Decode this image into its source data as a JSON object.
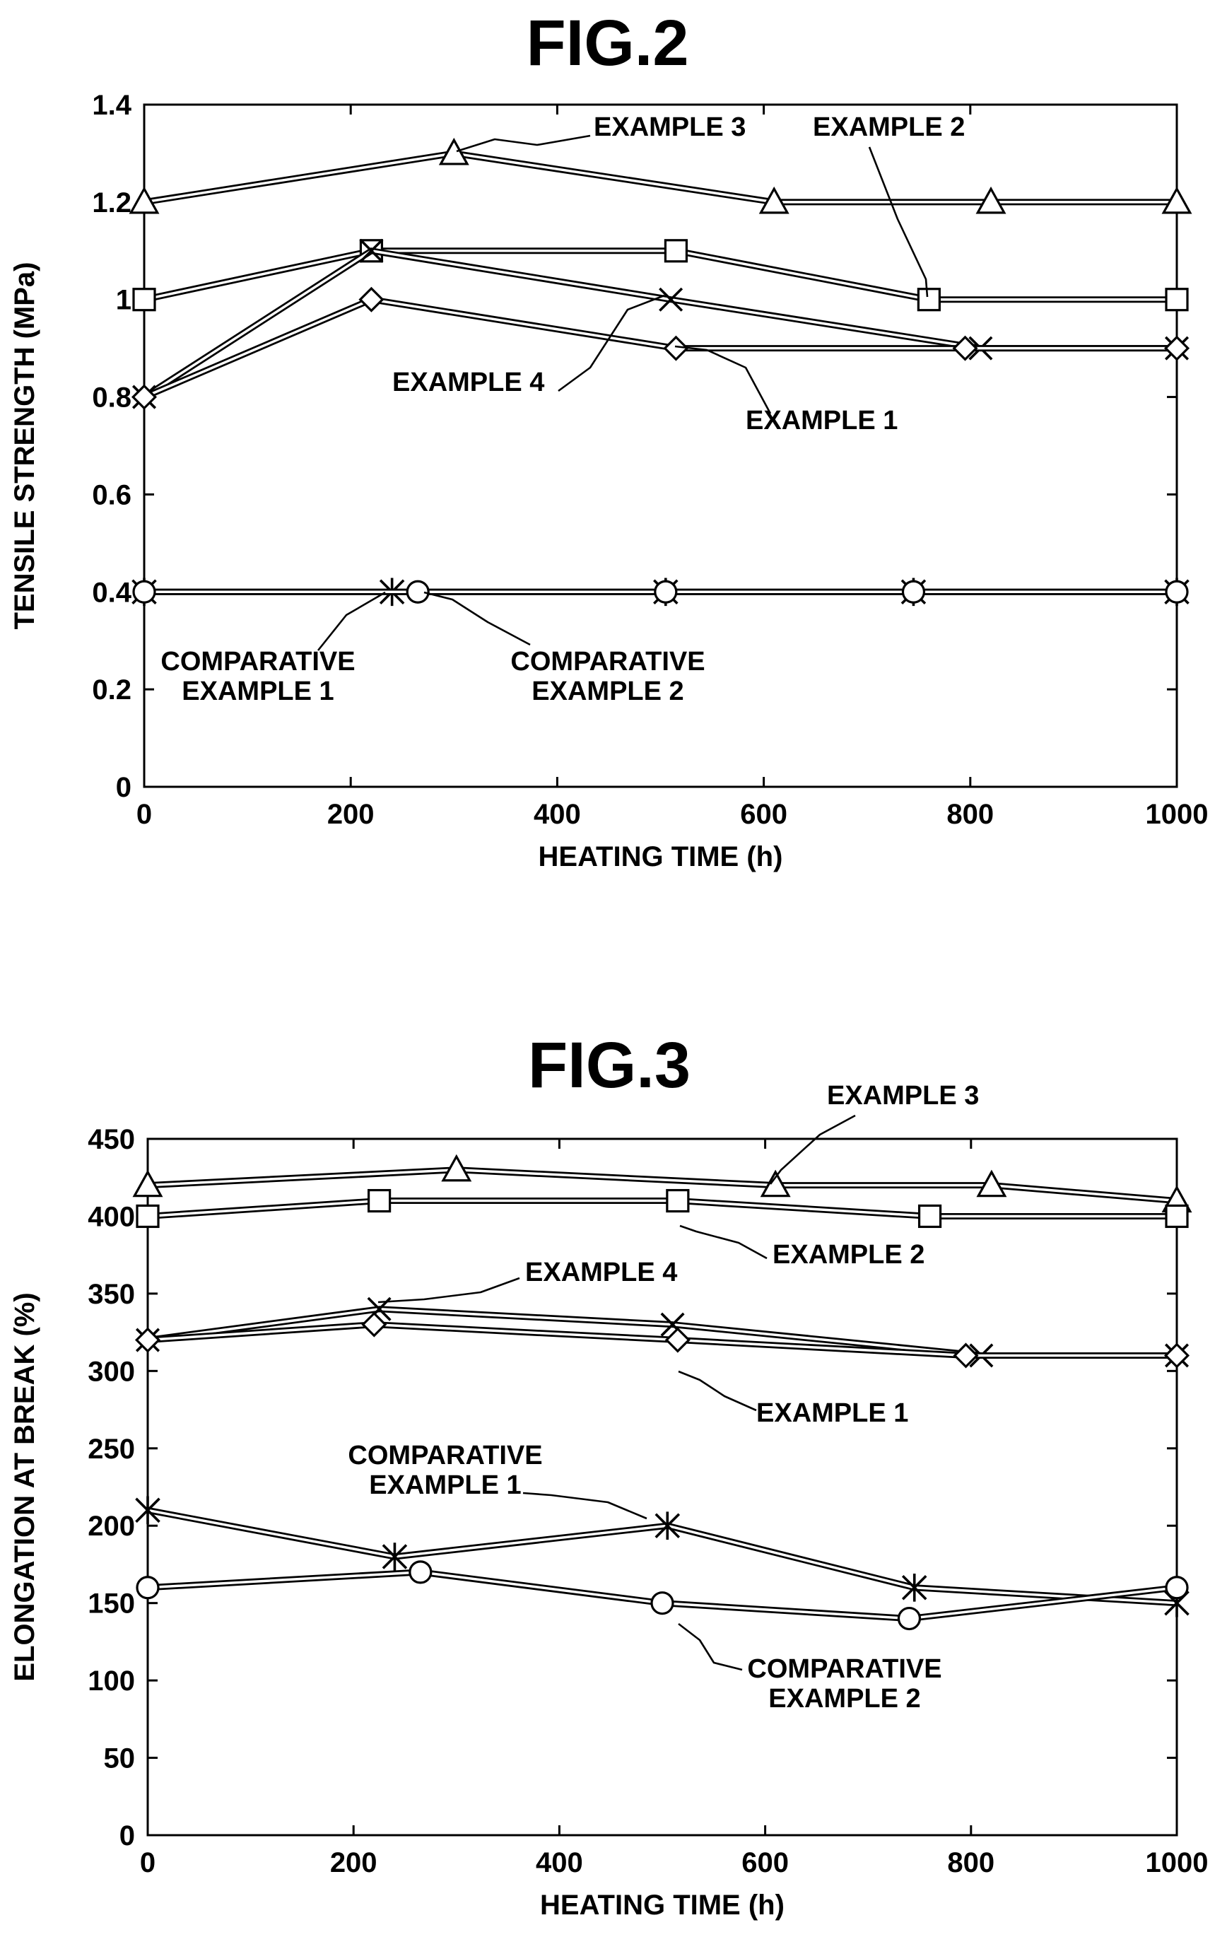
{
  "chart_data": [
    {
      "type": "line",
      "title": "FIG.2",
      "xlabel": "HEATING TIME (h)",
      "ylabel": "TENSILE STRENGTH (MPa)",
      "xlim": [
        0,
        1000
      ],
      "ylim": [
        0,
        1.4
      ],
      "xticks": [
        "0",
        "200",
        "400",
        "600",
        "800",
        "1000"
      ],
      "yticks": [
        "0",
        "0.2",
        "0.4",
        "0.6",
        "0.8",
        "1",
        "1.2",
        "1.4"
      ],
      "grid": false,
      "series": [
        {
          "name": "EXAMPLE 3",
          "marker": "triangle",
          "x": [
            0,
            300,
            610,
            820,
            1000
          ],
          "y": [
            1.2,
            1.3,
            1.2,
            1.2,
            1.2
          ]
        },
        {
          "name": "EXAMPLE 2",
          "marker": "square",
          "x": [
            0,
            220,
            515,
            760,
            1000
          ],
          "y": [
            1.0,
            1.1,
            1.1,
            1.0,
            1.0
          ]
        },
        {
          "name": "EXAMPLE 4",
          "marker": "x",
          "x": [
            0,
            220,
            510,
            810,
            1000
          ],
          "y": [
            0.8,
            1.1,
            1.0,
            0.9,
            0.9
          ]
        },
        {
          "name": "EXAMPLE 1",
          "marker": "diamond",
          "x": [
            0,
            220,
            515,
            795,
            1000
          ],
          "y": [
            0.8,
            1.0,
            0.9,
            0.9,
            0.9
          ]
        },
        {
          "name": "COMPARATIVE EXAMPLE 1",
          "marker": "asterisk",
          "x": [
            0,
            240,
            505,
            745,
            1000
          ],
          "y": [
            0.4,
            0.4,
            0.4,
            0.4,
            0.4
          ]
        },
        {
          "name": "COMPARATIVE EXAMPLE 2",
          "marker": "circle",
          "x": [
            0,
            265,
            505,
            745,
            1000
          ],
          "y": [
            0.4,
            0.4,
            0.4,
            0.4,
            0.4
          ]
        }
      ],
      "annotations": [
        {
          "series": "EXAMPLE 3",
          "lines": [
            "EXAMPLE 3"
          ]
        },
        {
          "series": "EXAMPLE 2",
          "lines": [
            "EXAMPLE 2"
          ]
        },
        {
          "series": "EXAMPLE 4",
          "lines": [
            "EXAMPLE 4"
          ]
        },
        {
          "series": "EXAMPLE 1",
          "lines": [
            "EXAMPLE 1"
          ]
        },
        {
          "series": "COMPARATIVE EXAMPLE 1",
          "lines": [
            "COMPARATIVE",
            "EXAMPLE 1"
          ]
        },
        {
          "series": "COMPARATIVE EXAMPLE 2",
          "lines": [
            "COMPARATIVE",
            "EXAMPLE 2"
          ]
        }
      ]
    },
    {
      "type": "line",
      "title": "FIG.3",
      "xlabel": "HEATING TIME (h)",
      "ylabel": "ELONGATION AT BREAK (%)",
      "xlim": [
        0,
        1000
      ],
      "ylim": [
        0,
        450
      ],
      "xticks": [
        "0",
        "200",
        "400",
        "600",
        "800",
        "1000"
      ],
      "yticks": [
        "0",
        "50",
        "100",
        "150",
        "200",
        "250",
        "300",
        "350",
        "400",
        "450"
      ],
      "grid": false,
      "series": [
        {
          "name": "EXAMPLE 3",
          "marker": "triangle",
          "x": [
            0,
            300,
            610,
            820,
            1000
          ],
          "y": [
            420,
            430,
            420,
            420,
            410
          ]
        },
        {
          "name": "EXAMPLE 2",
          "marker": "square",
          "x": [
            0,
            225,
            515,
            760,
            1000
          ],
          "y": [
            400,
            410,
            410,
            400,
            400
          ]
        },
        {
          "name": "EXAMPLE 4",
          "marker": "x",
          "x": [
            0,
            225,
            510,
            810,
            1000
          ],
          "y": [
            320,
            340,
            330,
            310,
            310
          ]
        },
        {
          "name": "EXAMPLE 1",
          "marker": "diamond",
          "x": [
            0,
            220,
            515,
            795,
            1000
          ],
          "y": [
            320,
            330,
            320,
            310,
            310
          ]
        },
        {
          "name": "COMPARATIVE EXAMPLE 1",
          "marker": "asterisk",
          "x": [
            0,
            240,
            505,
            745,
            1000
          ],
          "y": [
            210,
            180,
            200,
            160,
            150
          ]
        },
        {
          "name": "COMPARATIVE EXAMPLE 2",
          "marker": "circle",
          "x": [
            0,
            265,
            500,
            740,
            1000
          ],
          "y": [
            160,
            170,
            150,
            140,
            160
          ]
        }
      ],
      "annotations": [
        {
          "series": "EXAMPLE 3",
          "lines": [
            "EXAMPLE 3"
          ]
        },
        {
          "series": "EXAMPLE 2",
          "lines": [
            "EXAMPLE 2"
          ]
        },
        {
          "series": "EXAMPLE 4",
          "lines": [
            "EXAMPLE 4"
          ]
        },
        {
          "series": "EXAMPLE 1",
          "lines": [
            "EXAMPLE 1"
          ]
        },
        {
          "series": "COMPARATIVE EXAMPLE 1",
          "lines": [
            "COMPARATIVE",
            "EXAMPLE 1"
          ]
        },
        {
          "series": "COMPARATIVE EXAMPLE 2",
          "lines": [
            "COMPARATIVE",
            "EXAMPLE 2"
          ]
        }
      ]
    }
  ]
}
